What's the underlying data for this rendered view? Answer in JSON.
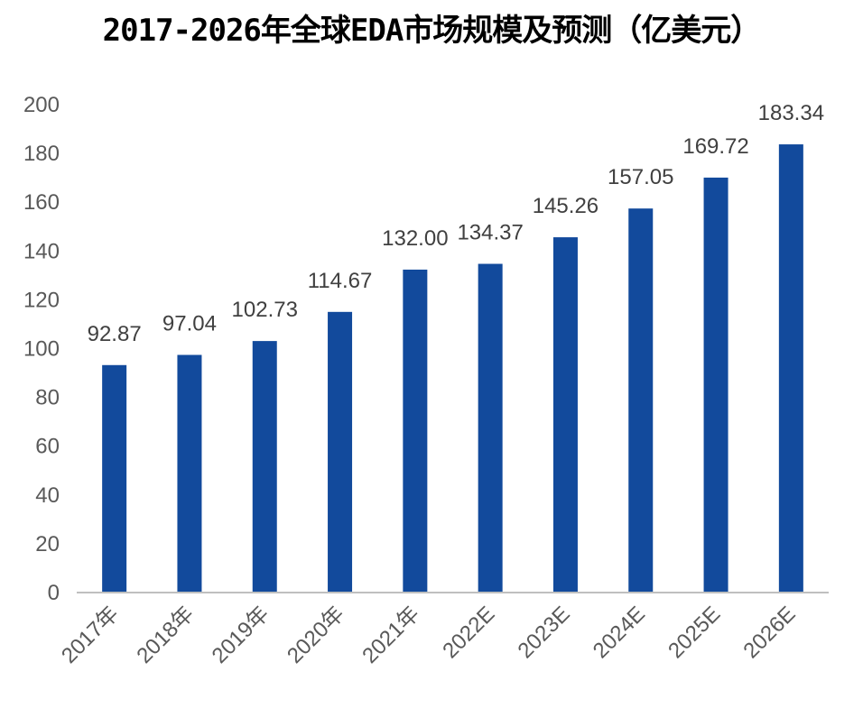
{
  "chart_data": {
    "type": "bar",
    "title": "2017-2026年全球EDA市场规模及预测（亿美元）",
    "categories": [
      "2017年",
      "2018年",
      "2019年",
      "2020年",
      "2021年",
      "2022E",
      "2023E",
      "2024E",
      "2025E",
      "2026E"
    ],
    "values": [
      92.87,
      97.04,
      102.73,
      114.67,
      132.0,
      134.37,
      145.26,
      157.05,
      169.72,
      183.34
    ],
    "value_labels": [
      "92.87",
      "97.04",
      "102.73",
      "114.67",
      "132.00",
      "134.37",
      "145.26",
      "157.05",
      "169.72",
      "183.34"
    ],
    "yticks": [
      "0",
      "20",
      "40",
      "60",
      "80",
      "100",
      "120",
      "140",
      "160",
      "180",
      "200"
    ],
    "ylim": [
      0,
      200
    ],
    "xlabel": "",
    "ylabel": "",
    "grid": false,
    "legend": "none",
    "colors": {
      "bar": "#124A9C",
      "axis": "#BFBFBF"
    }
  }
}
